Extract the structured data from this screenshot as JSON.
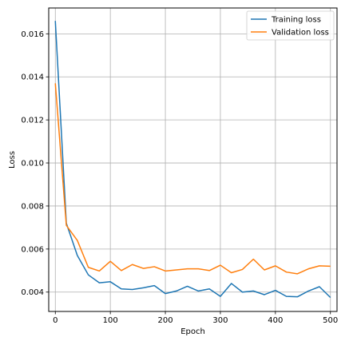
{
  "chart_data": {
    "type": "line",
    "title": "",
    "xlabel": "Epoch",
    "ylabel": "Loss",
    "xlim": [
      -12,
      512
    ],
    "ylim": [
      0.0031,
      0.0172
    ],
    "xticks": [
      0,
      100,
      200,
      300,
      400,
      500
    ],
    "yticks": [
      0.004,
      0.006,
      0.008,
      0.01,
      0.012,
      0.014,
      0.016
    ],
    "xtick_labels": [
      "0",
      "100",
      "200",
      "300",
      "400",
      "500"
    ],
    "ytick_labels": [
      "0.004",
      "0.006",
      "0.008",
      "0.010",
      "0.012",
      "0.014",
      "0.016"
    ],
    "grid": true,
    "legend_position": "top-right",
    "x": [
      0,
      20,
      40,
      60,
      80,
      100,
      120,
      140,
      160,
      180,
      200,
      220,
      240,
      260,
      280,
      300,
      320,
      340,
      360,
      380,
      400,
      420,
      440,
      460,
      480,
      500
    ],
    "series": [
      {
        "name": "Training loss",
        "color": "#1f77b4",
        "values": [
          0.0166,
          0.0072,
          0.0057,
          0.0048,
          0.00443,
          0.00448,
          0.00415,
          0.00412,
          0.0042,
          0.0043,
          0.00393,
          0.00405,
          0.00427,
          0.00405,
          0.00415,
          0.0038,
          0.0044,
          0.004,
          0.00405,
          0.00388,
          0.00408,
          0.0038,
          0.00378,
          0.00405,
          0.00425,
          0.00375
        ]
      },
      {
        "name": "Validation loss",
        "color": "#ff7f0e",
        "values": [
          0.0137,
          0.0071,
          0.0064,
          0.00515,
          0.00498,
          0.00543,
          0.005,
          0.00528,
          0.0051,
          0.00518,
          0.00498,
          0.00503,
          0.00508,
          0.00508,
          0.005,
          0.00525,
          0.0049,
          0.00505,
          0.00553,
          0.00503,
          0.00522,
          0.00493,
          0.00485,
          0.00508,
          0.00522,
          0.0052
        ]
      }
    ]
  }
}
